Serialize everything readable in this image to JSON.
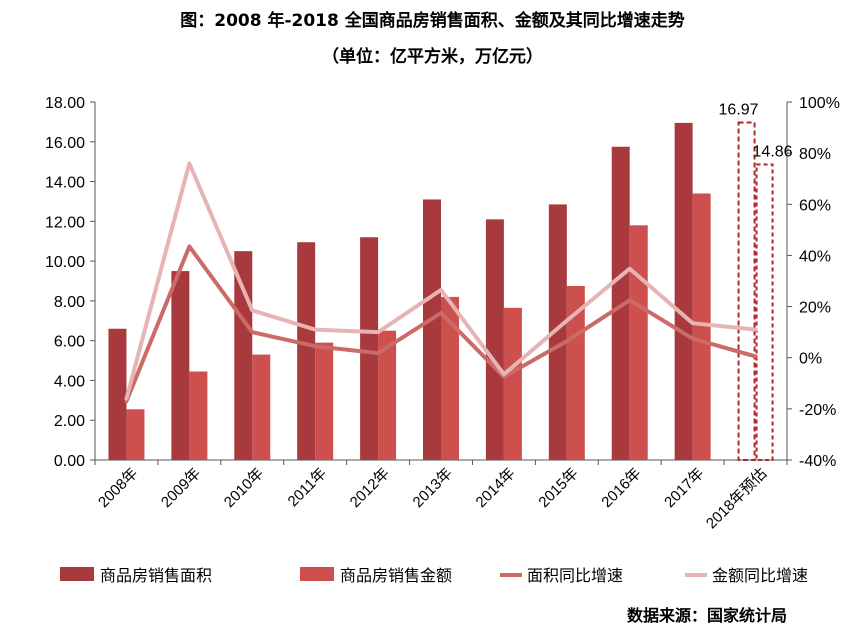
{
  "title": "图：2008 年-2018 全国商品房销售面积、金额及其同比增速走势",
  "subtitle": "（单位：亿平方米，万亿元）",
  "source": "数据来源：国家统计局",
  "chart_data": {
    "type": "bar",
    "categories": [
      "2008年",
      "2009年",
      "2010年",
      "2011年",
      "2012年",
      "2013年",
      "2014年",
      "2015年",
      "2016年",
      "2017年",
      "2018年预估"
    ],
    "left_axis": {
      "min": 0,
      "max": 18,
      "step": 2,
      "tick_labels": [
        "0.00",
        "2.00",
        "4.00",
        "6.00",
        "8.00",
        "10.00",
        "12.00",
        "14.00",
        "16.00",
        "18.00"
      ]
    },
    "right_axis": {
      "min": -40,
      "max": 100,
      "step": 20,
      "tick_labels": [
        "-40%",
        "-20%",
        "0%",
        "20%",
        "40%",
        "60%",
        "80%",
        "100%"
      ]
    },
    "series": [
      {
        "name": "商品房销售面积",
        "type": "bar",
        "axis": "left",
        "color": "#a83a3d",
        "values": [
          6.6,
          9.5,
          10.5,
          10.95,
          11.2,
          13.1,
          12.1,
          12.85,
          15.75,
          16.95,
          16.97
        ]
      },
      {
        "name": "商品房销售金额",
        "type": "bar",
        "axis": "left",
        "color": "#cd4f4e",
        "values": [
          2.55,
          4.45,
          5.3,
          5.9,
          6.5,
          8.2,
          7.65,
          8.75,
          11.8,
          13.4,
          14.86
        ]
      },
      {
        "name": "面积同比增速",
        "type": "line",
        "axis": "right",
        "color": "#cc6a68",
        "values": [
          -17,
          43.5,
          10,
          4.5,
          1.8,
          17.5,
          -7.5,
          6.5,
          22.5,
          7.5,
          0.5
        ]
      },
      {
        "name": "金额同比增速",
        "type": "line",
        "axis": "right",
        "color": "#e6b4b4",
        "values": [
          -16,
          76,
          18.5,
          11,
          10,
          26.5,
          -6.5,
          14.5,
          34.8,
          13.5,
          11
        ]
      }
    ],
    "annotations": [
      {
        "category": "2018年预估",
        "series": "商品房销售面积",
        "text": "16.97"
      },
      {
        "category": "2018年预估",
        "series": "商品房销售金额",
        "text": "14.86"
      }
    ],
    "legend_position": "bottom"
  }
}
